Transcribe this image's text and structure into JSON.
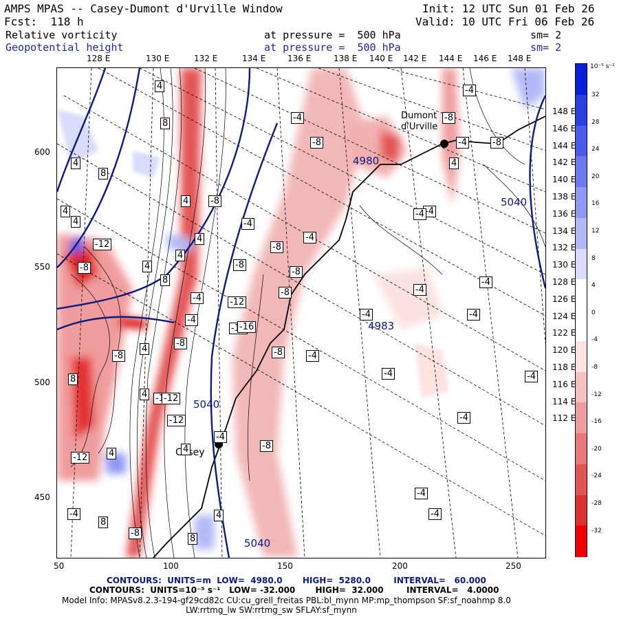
{
  "header": {
    "title": "AMPS MPAS -- Casey-Dumont d'Urville Window",
    "init": "Init: 12 UTC Sun 01 Feb 26",
    "fcst": "Fcst:  118 h",
    "valid": "Valid: 10 UTC Fri 06 Feb 26",
    "field1": "Relative vorticity",
    "field1_level": "at pressure =  500 hPa",
    "field1_sm": "sm= 2",
    "field2": "Geopotential height",
    "field2_level": "at pressure =  500 hPa",
    "field2_sm": "sm= 2"
  },
  "top_axis": [
    "128 E",
    "130 E",
    "132 E",
    "134 E",
    "136 E",
    "138 E",
    "140 E",
    "142 E",
    "144 E",
    "146 E",
    "148 E"
  ],
  "left_axis": [
    "600",
    "550",
    "500",
    "450"
  ],
  "bottom_axis": [
    "50",
    "100",
    "150",
    "200",
    "250"
  ],
  "right_axis": [
    "148 E",
    "146 E",
    "144 E",
    "142 E",
    "140 E",
    "138 E",
    "136 E",
    "134 E",
    "132 E",
    "130 E",
    "128 E",
    "126 E",
    "124 E",
    "122 E",
    "120 E",
    "118 E",
    "116 E",
    "114 E",
    "112 E"
  ],
  "places": {
    "casey": "Casey",
    "dumont": "Dumont\nd'Urville"
  },
  "height_labels": [
    "4980",
    "4983",
    "5040",
    "5040",
    "5040"
  ],
  "vort_labels": [
    "4",
    "8",
    "-4",
    "-8",
    "-12",
    "-16"
  ],
  "colorbar": {
    "unit": "10⁻⁵ s⁻¹",
    "ticks": [
      "32",
      "28",
      "24",
      "20",
      "16",
      "12",
      "8",
      "4",
      "0",
      "-4",
      "-8",
      "-12",
      "-16",
      "-20",
      "-24",
      "-28",
      "-32"
    ],
    "colors": [
      "#0a1ee0",
      "#2a3ee6",
      "#4a5aea",
      "#6b78ee",
      "#8e98f2",
      "#b2b9f6",
      "#d8dcfa",
      "#ffffff",
      "#ffffff",
      "#fde2e2",
      "#f7c0c0",
      "#f09c9c",
      "#ea7878",
      "#e45454",
      "#de3030",
      "#f00000"
    ]
  },
  "footer": {
    "line1": "CONTOURS:  UNITS=m  LOW=  4980.0       HIGH=  5280.0        INTERVAL=   60.000",
    "line2": "CONTOURS:  UNITS=10⁻⁵ s⁻¹   LOW= -32.000       HIGH=  32.000        INTERVAL=   4.0000",
    "line3": "Model Info: MPASv8.2.3-194-gf29cd82c CU:cu_grell_freitas PBL:bl_mynn MP:mp_thompson SF:sf_noahmp 8.0",
    "line4": "LW:rrtmg_lw SW:rrtmg_sw SFLAY:sf_mynn"
  }
}
